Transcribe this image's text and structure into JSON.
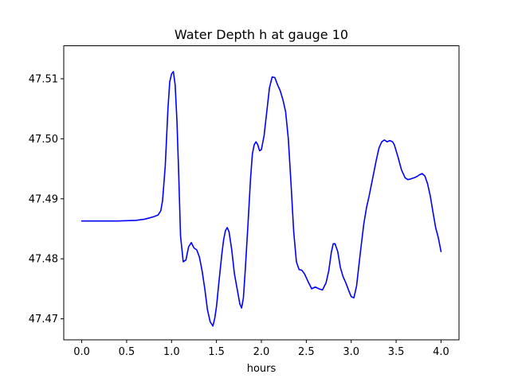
{
  "chart_data": {
    "type": "line",
    "title": "Water Depth h at gauge 10",
    "xlabel": "hours",
    "ylabel": "",
    "xlim": [
      -0.2,
      4.2
    ],
    "ylim": [
      47.4665,
      47.5155
    ],
    "xticks": [
      0.0,
      0.5,
      1.0,
      1.5,
      2.0,
      2.5,
      3.0,
      3.5,
      4.0
    ],
    "xtick_labels": [
      "0.0",
      "0.5",
      "1.0",
      "1.5",
      "2.0",
      "2.5",
      "3.0",
      "3.5",
      "4.0"
    ],
    "yticks": [
      47.47,
      47.48,
      47.49,
      47.5,
      47.51
    ],
    "ytick_labels": [
      "47.47",
      "47.48",
      "47.49",
      "47.50",
      "47.51"
    ],
    "grid": false,
    "series": [
      {
        "color": "#0000ff",
        "x": [
          0.0,
          0.2,
          0.4,
          0.6,
          0.7,
          0.75,
          0.8,
          0.85,
          0.88,
          0.9,
          0.93,
          0.96,
          0.98,
          1.0,
          1.02,
          1.04,
          1.06,
          1.08,
          1.1,
          1.13,
          1.16,
          1.19,
          1.22,
          1.25,
          1.28,
          1.31,
          1.34,
          1.37,
          1.4,
          1.43,
          1.46,
          1.48,
          1.5,
          1.53,
          1.56,
          1.58,
          1.6,
          1.62,
          1.64,
          1.67,
          1.7,
          1.73,
          1.76,
          1.78,
          1.8,
          1.82,
          1.85,
          1.88,
          1.9,
          1.92,
          1.94,
          1.96,
          1.98,
          2.0,
          2.03,
          2.06,
          2.09,
          2.12,
          2.15,
          2.18,
          2.21,
          2.24,
          2.27,
          2.3,
          2.33,
          2.36,
          2.39,
          2.42,
          2.45,
          2.48,
          2.52,
          2.56,
          2.6,
          2.64,
          2.68,
          2.72,
          2.75,
          2.78,
          2.8,
          2.82,
          2.85,
          2.88,
          2.91,
          2.94,
          2.97,
          3.0,
          3.03,
          3.06,
          3.1,
          3.14,
          3.17,
          3.2,
          3.24,
          3.28,
          3.31,
          3.34,
          3.37,
          3.4,
          3.43,
          3.46,
          3.48,
          3.52,
          3.56,
          3.6,
          3.63,
          3.66,
          3.7,
          3.73,
          3.76,
          3.79,
          3.82,
          3.85,
          3.88,
          3.91,
          3.94,
          3.97,
          4.0
        ],
        "y": [
          47.4863,
          47.4863,
          47.4863,
          47.4864,
          47.4866,
          47.4868,
          47.487,
          47.4873,
          47.488,
          47.4897,
          47.4955,
          47.505,
          47.5095,
          47.5108,
          47.5112,
          47.509,
          47.503,
          47.494,
          47.4838,
          47.4795,
          47.4798,
          47.482,
          47.4827,
          47.4818,
          47.4815,
          47.4803,
          47.478,
          47.475,
          47.4715,
          47.4695,
          47.4688,
          47.47,
          47.472,
          47.4765,
          47.4808,
          47.4832,
          47.4847,
          47.4852,
          47.4845,
          47.4815,
          47.4775,
          47.475,
          47.4725,
          47.4718,
          47.4735,
          47.478,
          47.4855,
          47.4935,
          47.4975,
          47.499,
          47.4995,
          47.499,
          47.498,
          47.4982,
          47.5005,
          47.5045,
          47.5085,
          47.5103,
          47.5102,
          47.509,
          47.508,
          47.5065,
          47.5045,
          47.5,
          47.4925,
          47.4845,
          47.4795,
          47.4782,
          47.4781,
          47.4775,
          47.4762,
          47.475,
          47.4753,
          47.475,
          47.4748,
          47.476,
          47.478,
          47.4812,
          47.4825,
          47.4825,
          47.4812,
          47.4785,
          47.477,
          47.476,
          47.4748,
          47.4737,
          47.4735,
          47.4755,
          47.4808,
          47.4858,
          47.4885,
          47.4905,
          47.4935,
          47.4965,
          47.4985,
          47.4995,
          47.4998,
          47.4995,
          47.4997,
          47.4995,
          47.499,
          47.497,
          47.4948,
          47.4935,
          47.4932,
          47.4933,
          47.4935,
          47.4937,
          47.494,
          47.4942,
          47.4938,
          47.4925,
          47.4905,
          47.4878,
          47.4852,
          47.4835,
          47.4812
        ]
      }
    ]
  }
}
